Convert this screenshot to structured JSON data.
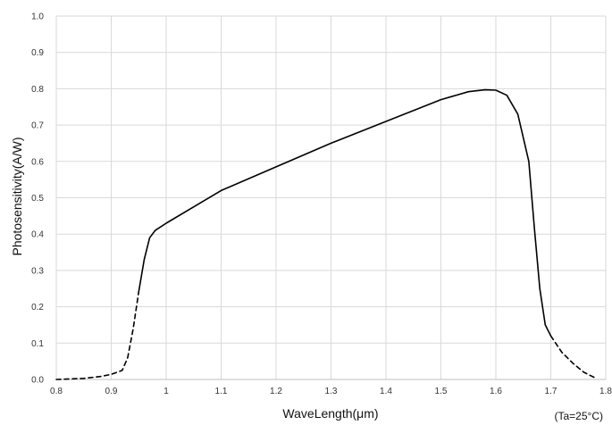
{
  "chart_data": {
    "type": "line",
    "title": "",
    "xlabel": "WaveLength(μm)",
    "ylabel": "Photosensitivity(A/W)",
    "annotation": "(Ta=25°C)",
    "xlim": [
      0.8,
      1.8
    ],
    "ylim": [
      0.0,
      1.0
    ],
    "x_ticks": [
      "0.8",
      "0.9",
      "1",
      "1.1",
      "1.2",
      "1.3",
      "1.4",
      "1.5",
      "1.6",
      "1.7",
      "1.8"
    ],
    "y_ticks": [
      "0.0",
      "0.1",
      "0.2",
      "0.3",
      "0.4",
      "0.5",
      "0.6",
      "0.7",
      "0.8",
      "0.9",
      "1.0"
    ],
    "grid": true,
    "legend": "none",
    "colors": {
      "line": "#000000",
      "grid": "#d9d9d9",
      "axis": "#bfbfbf"
    },
    "series": [
      {
        "style": "dashed",
        "x": [
          0.8,
          0.85,
          0.88,
          0.9,
          0.92,
          0.93,
          0.94,
          0.95
        ],
        "y": [
          0.0,
          0.003,
          0.008,
          0.014,
          0.025,
          0.06,
          0.14,
          0.24
        ]
      },
      {
        "style": "solid",
        "x": [
          0.95,
          0.96,
          0.97,
          0.98,
          1.0,
          1.05,
          1.1,
          1.2,
          1.3,
          1.4,
          1.5,
          1.55,
          1.58,
          1.6,
          1.62,
          1.64,
          1.66,
          1.67,
          1.68,
          1.69,
          1.7
        ],
        "y": [
          0.24,
          0.33,
          0.39,
          0.41,
          0.43,
          0.475,
          0.52,
          0.585,
          0.65,
          0.71,
          0.77,
          0.792,
          0.797,
          0.796,
          0.782,
          0.73,
          0.6,
          0.42,
          0.25,
          0.15,
          0.12
        ]
      },
      {
        "style": "dashed",
        "x": [
          1.7,
          1.72,
          1.74,
          1.76,
          1.78
        ],
        "y": [
          0.12,
          0.075,
          0.045,
          0.02,
          0.005
        ]
      }
    ]
  }
}
